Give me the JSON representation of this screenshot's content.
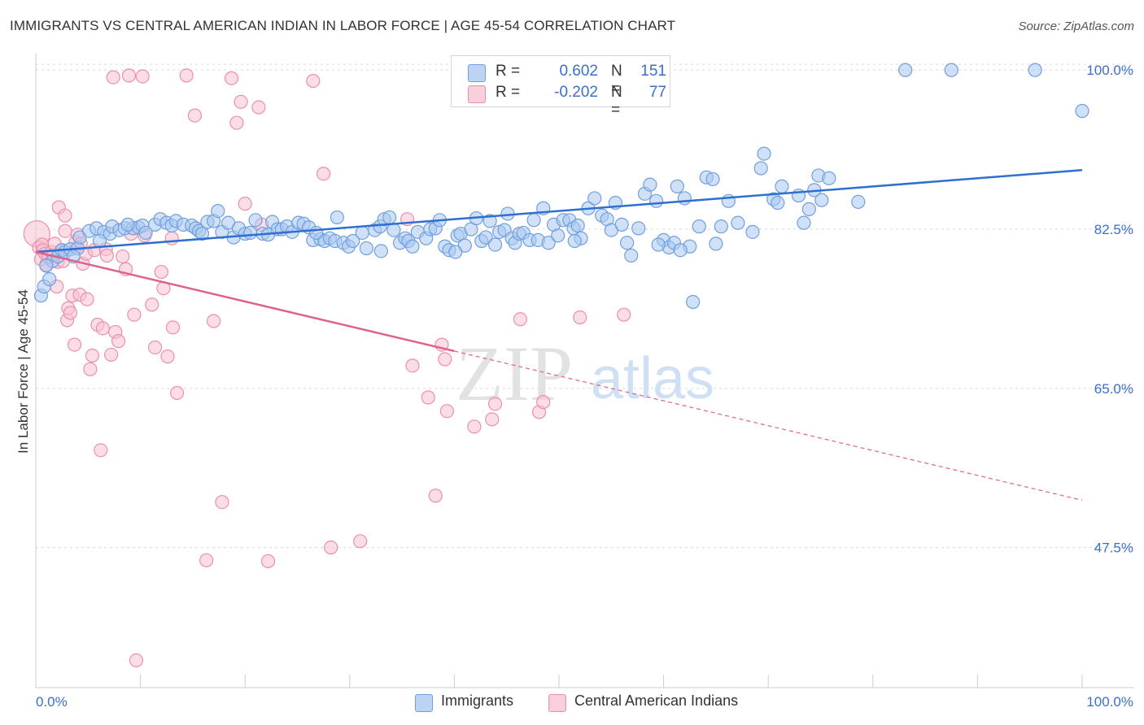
{
  "header": {
    "title": "IMMIGRANTS VS CENTRAL AMERICAN INDIAN IN LABOR FORCE | AGE 45-54 CORRELATION CHART",
    "source": "Source: ZipAtlas.com"
  },
  "legend": {
    "rows": [
      {
        "r_label": "R =",
        "r_value": "0.602",
        "n_label": "N =",
        "n_value": "151"
      },
      {
        "r_label": "R =",
        "r_value": "-0.202",
        "n_label": "N =",
        "n_value": "77"
      }
    ]
  },
  "bottom_legend": {
    "items": [
      {
        "label": "Immigrants"
      },
      {
        "label": "Central American Indians"
      }
    ]
  },
  "watermark": {
    "zip": "ZIP",
    "atlas": "atlas"
  },
  "colors": {
    "blue_fill": "#a9c8f0",
    "blue_stroke": "#6f9fdf",
    "blue_line": "#2f6fd0",
    "pink_fill": "#f7c1d1",
    "pink_stroke": "#ec8fad",
    "pink_line": "#e0608a",
    "grid": "#d8d8d8",
    "axis_text": "#3a6fcb"
  },
  "chart_data": {
    "type": "scatter",
    "ylabel": "In Labor Force | Age 45-54",
    "xlabel": "",
    "xlim": [
      0,
      100
    ],
    "ylim": [
      32.1,
      101.8
    ],
    "x_tick_labels": [
      "0.0%",
      "100.0%"
    ],
    "y_ticks": [
      47.5,
      65.0,
      82.5,
      100.0
    ],
    "y_tick_labels": [
      "47.5%",
      "65.0%",
      "82.5%",
      "100.0%"
    ],
    "grid": true,
    "series": [
      {
        "name": "Immigrants",
        "color": "#6f9fdf",
        "trend": {
          "x0": 0,
          "y0": 80.0,
          "x1": 100,
          "y1": 89.0
        },
        "points": [
          [
            0.5,
            75.2
          ],
          [
            0.8,
            76.2
          ],
          [
            1.3,
            77.0
          ],
          [
            1.6,
            79.0
          ],
          [
            2.1,
            79.5
          ],
          [
            2.5,
            80.2
          ],
          [
            2.8,
            80.0
          ],
          [
            3.3,
            80.3
          ],
          [
            4.0,
            80.4
          ],
          [
            4.2,
            81.6
          ],
          [
            5.1,
            82.3
          ],
          [
            5.8,
            82.6
          ],
          [
            6.5,
            82.2
          ],
          [
            7.1,
            82.0
          ],
          [
            7.3,
            82.8
          ],
          [
            8.0,
            82.4
          ],
          [
            8.5,
            82.6
          ],
          [
            9.3,
            82.6
          ],
          [
            9.8,
            82.7
          ],
          [
            10.2,
            82.9
          ],
          [
            10.5,
            82.1
          ],
          [
            11.4,
            83.0
          ],
          [
            11.9,
            83.6
          ],
          [
            12.5,
            83.2
          ],
          [
            13.0,
            82.9
          ],
          [
            13.4,
            83.4
          ],
          [
            14.1,
            83.0
          ],
          [
            14.9,
            82.9
          ],
          [
            15.3,
            82.6
          ],
          [
            15.6,
            82.3
          ],
          [
            16.4,
            83.3
          ],
          [
            17.0,
            83.4
          ],
          [
            17.4,
            84.5
          ],
          [
            17.8,
            82.2
          ],
          [
            18.4,
            83.2
          ],
          [
            18.9,
            81.6
          ],
          [
            19.4,
            82.6
          ],
          [
            20.0,
            82.0
          ],
          [
            20.5,
            82.1
          ],
          [
            21.0,
            83.5
          ],
          [
            21.7,
            82.0
          ],
          [
            22.2,
            81.9
          ],
          [
            22.6,
            83.3
          ],
          [
            23.1,
            82.5
          ],
          [
            23.5,
            82.5
          ],
          [
            24.0,
            82.8
          ],
          [
            24.5,
            82.2
          ],
          [
            25.1,
            83.2
          ],
          [
            25.6,
            83.1
          ],
          [
            26.1,
            82.7
          ],
          [
            26.5,
            81.3
          ],
          [
            27.2,
            81.4
          ],
          [
            27.6,
            81.2
          ],
          [
            28.1,
            81.5
          ],
          [
            28.6,
            81.2
          ],
          [
            28.8,
            83.8
          ],
          [
            29.4,
            81.0
          ],
          [
            29.9,
            80.6
          ],
          [
            30.3,
            81.2
          ],
          [
            31.2,
            82.1
          ],
          [
            31.6,
            80.4
          ],
          [
            32.4,
            82.4
          ],
          [
            32.9,
            82.8
          ],
          [
            33.3,
            83.6
          ],
          [
            33.8,
            83.8
          ],
          [
            34.2,
            82.4
          ],
          [
            34.8,
            81.0
          ],
          [
            35.3,
            81.5
          ],
          [
            35.6,
            81.2
          ],
          [
            36.0,
            80.6
          ],
          [
            36.5,
            82.2
          ],
          [
            37.3,
            81.5
          ],
          [
            37.7,
            82.5
          ],
          [
            38.2,
            82.6
          ],
          [
            38.6,
            83.5
          ],
          [
            39.1,
            80.6
          ],
          [
            39.5,
            80.2
          ],
          [
            40.3,
            81.8
          ],
          [
            40.6,
            82.0
          ],
          [
            41.0,
            80.7
          ],
          [
            41.6,
            82.5
          ],
          [
            42.1,
            83.7
          ],
          [
            42.6,
            81.2
          ],
          [
            43.0,
            81.6
          ],
          [
            43.4,
            83.4
          ],
          [
            43.9,
            80.8
          ],
          [
            44.3,
            82.2
          ],
          [
            44.8,
            82.4
          ],
          [
            45.5,
            81.5
          ],
          [
            45.8,
            81.0
          ],
          [
            46.2,
            82.0
          ],
          [
            46.6,
            82.1
          ],
          [
            47.2,
            81.3
          ],
          [
            47.6,
            83.5
          ],
          [
            48.0,
            81.3
          ],
          [
            48.5,
            84.8
          ],
          [
            49.0,
            81.0
          ],
          [
            49.5,
            83.0
          ],
          [
            49.9,
            81.8
          ],
          [
            50.4,
            83.5
          ],
          [
            51.0,
            83.5
          ],
          [
            51.4,
            82.6
          ],
          [
            51.8,
            82.9
          ],
          [
            52.1,
            81.5
          ],
          [
            52.8,
            84.8
          ],
          [
            53.4,
            85.9
          ],
          [
            54.1,
            84.0
          ],
          [
            54.6,
            83.6
          ],
          [
            55.0,
            82.4
          ],
          [
            55.4,
            85.4
          ],
          [
            56.0,
            83.0
          ],
          [
            56.5,
            81.0
          ],
          [
            56.9,
            79.6
          ],
          [
            57.6,
            82.6
          ],
          [
            58.2,
            86.4
          ],
          [
            58.7,
            87.4
          ],
          [
            59.3,
            85.6
          ],
          [
            60.0,
            81.3
          ],
          [
            60.5,
            80.5
          ],
          [
            61.0,
            81.0
          ],
          [
            61.3,
            87.2
          ],
          [
            62.0,
            85.9
          ],
          [
            62.5,
            80.6
          ],
          [
            62.8,
            74.5
          ],
          [
            63.4,
            82.8
          ],
          [
            64.1,
            88.2
          ],
          [
            64.7,
            88.0
          ],
          [
            65.0,
            80.9
          ],
          [
            65.5,
            82.8
          ],
          [
            66.2,
            85.6
          ],
          [
            67.1,
            83.2
          ],
          [
            68.5,
            82.2
          ],
          [
            69.3,
            89.2
          ],
          [
            69.6,
            90.8
          ],
          [
            70.5,
            85.8
          ],
          [
            70.9,
            85.4
          ],
          [
            71.3,
            87.2
          ],
          [
            72.9,
            86.2
          ],
          [
            73.4,
            83.2
          ],
          [
            73.9,
            84.7
          ],
          [
            74.4,
            86.8
          ],
          [
            74.8,
            88.4
          ],
          [
            75.1,
            85.7
          ],
          [
            75.8,
            88.1
          ],
          [
            78.6,
            85.5
          ],
          [
            83.1,
            100.0
          ],
          [
            87.5,
            100.0
          ],
          [
            95.5,
            100.0
          ],
          [
            100.0,
            95.5
          ],
          [
            59.5,
            80.8
          ],
          [
            26.8,
            82.1
          ],
          [
            45.1,
            84.2
          ],
          [
            1.0,
            78.5
          ],
          [
            3.6,
            79.5
          ],
          [
            6.1,
            81.2
          ],
          [
            8.8,
            83.0
          ],
          [
            15.9,
            82.0
          ],
          [
            33.0,
            80.1
          ],
          [
            40.1,
            80.0
          ],
          [
            61.6,
            80.2
          ],
          [
            51.5,
            81.2
          ]
        ]
      },
      {
        "name": "Central American Indians",
        "color": "#ec8fad",
        "trend": {
          "x0": 0,
          "y0": 80.0,
          "x1": 40,
          "y1": 69.1
        },
        "trend_dashed": {
          "x0": 40,
          "y0": 69.1,
          "x1": 100,
          "y1": 52.7
        },
        "points": [
          [
            0.1,
            82.0
          ],
          [
            0.3,
            80.5
          ],
          [
            0.5,
            79.2
          ],
          [
            0.6,
            80.8
          ],
          [
            0.7,
            80.2
          ],
          [
            0.9,
            79.8
          ],
          [
            1.0,
            78.6
          ],
          [
            1.2,
            79.4
          ],
          [
            1.5,
            80.0
          ],
          [
            1.7,
            79.7
          ],
          [
            1.8,
            80.9
          ],
          [
            2.0,
            76.2
          ],
          [
            2.1,
            78.9
          ],
          [
            2.2,
            84.9
          ],
          [
            2.5,
            80.2
          ],
          [
            2.6,
            79.0
          ],
          [
            2.8,
            84.0
          ],
          [
            2.8,
            82.3
          ],
          [
            3.0,
            72.5
          ],
          [
            3.1,
            73.8
          ],
          [
            3.3,
            73.3
          ],
          [
            3.5,
            75.2
          ],
          [
            3.7,
            69.8
          ],
          [
            3.8,
            81.1
          ],
          [
            4.0,
            81.9
          ],
          [
            4.2,
            75.3
          ],
          [
            4.3,
            80.9
          ],
          [
            4.5,
            78.7
          ],
          [
            4.8,
            79.8
          ],
          [
            4.9,
            74.8
          ],
          [
            5.2,
            67.1
          ],
          [
            5.4,
            68.6
          ],
          [
            5.6,
            80.2
          ],
          [
            5.9,
            72.0
          ],
          [
            6.2,
            58.2
          ],
          [
            6.4,
            71.6
          ],
          [
            6.7,
            80.3
          ],
          [
            6.8,
            79.6
          ],
          [
            7.2,
            68.7
          ],
          [
            7.4,
            99.2
          ],
          [
            7.6,
            71.2
          ],
          [
            7.9,
            70.2
          ],
          [
            8.3,
            79.5
          ],
          [
            8.6,
            78.1
          ],
          [
            8.9,
            99.4
          ],
          [
            9.1,
            82.0
          ],
          [
            9.4,
            73.1
          ],
          [
            9.6,
            35.1
          ],
          [
            10.2,
            99.3
          ],
          [
            10.4,
            81.8
          ],
          [
            11.1,
            74.2
          ],
          [
            11.4,
            69.5
          ],
          [
            12.0,
            77.8
          ],
          [
            12.2,
            76.0
          ],
          [
            12.6,
            68.5
          ],
          [
            13.0,
            81.5
          ],
          [
            13.1,
            71.7
          ],
          [
            13.5,
            64.5
          ],
          [
            14.4,
            99.4
          ],
          [
            15.2,
            95.0
          ],
          [
            16.3,
            46.1
          ],
          [
            17.0,
            72.4
          ],
          [
            17.8,
            52.5
          ],
          [
            18.7,
            99.1
          ],
          [
            19.2,
            94.2
          ],
          [
            19.6,
            96.5
          ],
          [
            20.0,
            85.3
          ],
          [
            21.3,
            95.9
          ],
          [
            21.6,
            83.0
          ],
          [
            22.2,
            46.0
          ],
          [
            26.5,
            98.8
          ],
          [
            27.5,
            88.6
          ],
          [
            28.2,
            47.5
          ],
          [
            31.0,
            48.2
          ],
          [
            35.5,
            83.6
          ],
          [
            36.0,
            67.5
          ],
          [
            37.5,
            64.0
          ],
          [
            38.2,
            53.2
          ],
          [
            38.8,
            69.8
          ],
          [
            39.1,
            68.2
          ],
          [
            39.3,
            62.5
          ],
          [
            41.9,
            60.8
          ],
          [
            43.6,
            61.6
          ],
          [
            43.9,
            63.3
          ],
          [
            46.3,
            72.6
          ],
          [
            48.1,
            62.4
          ],
          [
            48.5,
            63.5
          ],
          [
            52.0,
            72.8
          ],
          [
            56.2,
            73.1
          ]
        ]
      }
    ]
  }
}
